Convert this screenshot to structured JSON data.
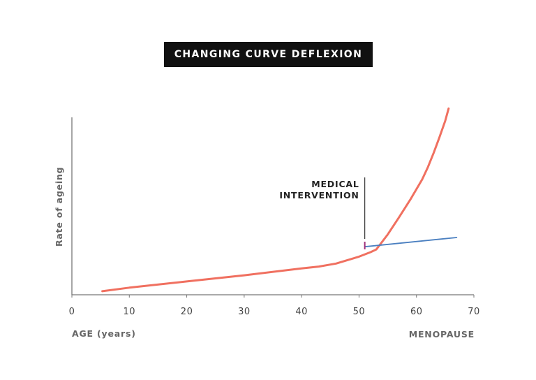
{
  "chart_data": {
    "type": "line",
    "title": "CHANGING CURVE DEFLEXION",
    "xlabel": "AGE (years)",
    "ylabel": "Rate of ageing",
    "secondary_xlabel": "MENOPAUSE",
    "xlim": [
      0,
      70
    ],
    "ylim": [
      0,
      100
    ],
    "x_ticks": [
      0,
      10,
      20,
      30,
      40,
      50,
      60,
      70
    ],
    "annotation": {
      "text_lines": [
        "MEDICAL",
        "INTERVENTION"
      ],
      "x": 51
    },
    "series": [
      {
        "color": "#f07060",
        "points": [
          [
            5.3,
            2
          ],
          [
            10,
            4
          ],
          [
            20,
            7.5
          ],
          [
            30,
            11
          ],
          [
            40,
            14.9
          ],
          [
            43,
            15.9
          ],
          [
            46,
            17.6
          ],
          [
            50,
            21.5
          ],
          [
            52,
            24
          ],
          [
            53,
            25.5
          ],
          [
            55,
            34
          ],
          [
            57,
            43.8
          ],
          [
            59,
            54
          ],
          [
            61,
            65
          ],
          [
            62,
            72
          ],
          [
            63,
            80
          ],
          [
            64,
            88.7
          ],
          [
            65,
            98
          ],
          [
            65.6,
            105
          ]
        ]
      },
      {
        "color": "#4a7fc0",
        "points": [
          [
            51,
            27.1
          ],
          [
            67,
            32.3
          ]
        ]
      }
    ]
  }
}
